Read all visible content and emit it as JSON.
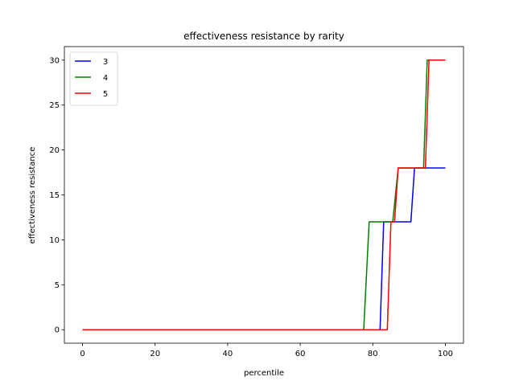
{
  "chart_data": {
    "type": "line",
    "title": "effectiveness resistance by rarity",
    "xlabel": "percentile",
    "ylabel": "effectiveness resistance",
    "xlim": [
      -5,
      105
    ],
    "ylim": [
      -1.5,
      31.5
    ],
    "xticks": [
      0,
      20,
      40,
      60,
      80,
      100
    ],
    "yticks": [
      0,
      5,
      10,
      15,
      20,
      25,
      30
    ],
    "grid": false,
    "legend_position": "top-left",
    "series": [
      {
        "name": "3",
        "color": "#0000ff",
        "x": [
          0,
          82,
          83,
          90.5,
          91.5,
          100
        ],
        "y": [
          0,
          0,
          12,
          12,
          18,
          18
        ]
      },
      {
        "name": "4",
        "color": "#008000",
        "x": [
          0,
          77.5,
          79,
          85.5,
          87,
          94,
          95,
          100
        ],
        "y": [
          0,
          0,
          12,
          12,
          18,
          18,
          30,
          30
        ]
      },
      {
        "name": "5",
        "color": "#ff0000",
        "x": [
          0,
          84,
          85,
          86,
          87,
          94.5,
          95.5,
          100
        ],
        "y": [
          0,
          0,
          12,
          12,
          18,
          18,
          30,
          30
        ]
      }
    ]
  }
}
